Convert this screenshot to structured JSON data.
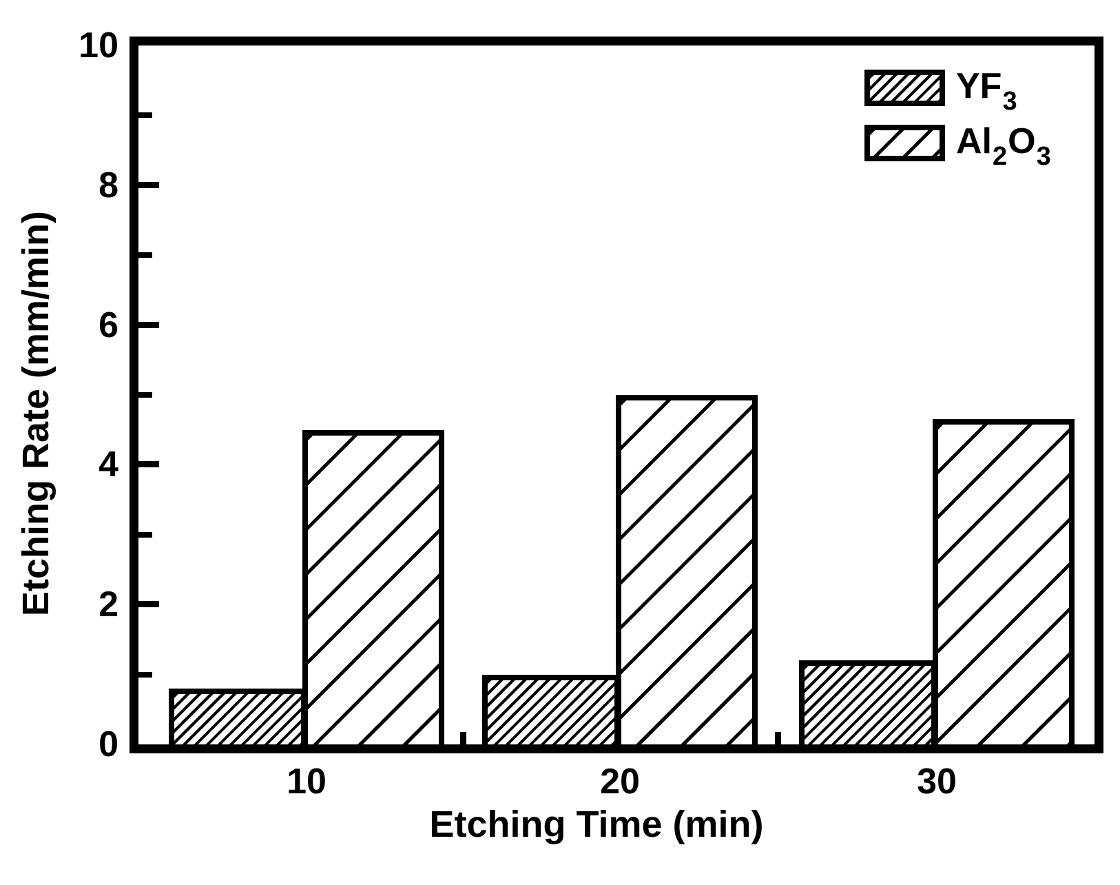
{
  "figure": {
    "background_color": "#ffffff",
    "ink_color": "#000000"
  },
  "chart_data": {
    "type": "bar",
    "title": "",
    "xlabel": "Etching Time (min)",
    "ylabel": "Etching Rate (mm/min)",
    "categories": [
      "10",
      "20",
      "30"
    ],
    "series": [
      {
        "key": "yf3",
        "name": "YF3",
        "hatch": "dense-diagonal",
        "values": [
          0.8,
          1.0,
          1.2
        ],
        "label_parts": [
          {
            "t": "YF",
            "sub": false
          },
          {
            "t": "3",
            "sub": true
          }
        ]
      },
      {
        "key": "al2o3",
        "name": "Al2O3",
        "hatch": "sparse-diagonal",
        "values": [
          4.5,
          5.0,
          4.65
        ],
        "label_parts": [
          {
            "t": "Al",
            "sub": false
          },
          {
            "t": "2",
            "sub": true
          },
          {
            "t": "O",
            "sub": false
          },
          {
            "t": "3",
            "sub": true
          }
        ]
      }
    ],
    "ylim": [
      0,
      10
    ],
    "y_major_ticks": [
      0,
      2,
      4,
      6,
      8,
      10
    ],
    "y_minor_ticks": [
      1,
      3,
      5,
      7,
      9
    ],
    "grid": false,
    "legend_position": "top-right-inside",
    "bar_fill": "white-with-black-hatch",
    "frame": "thick-black-box"
  }
}
